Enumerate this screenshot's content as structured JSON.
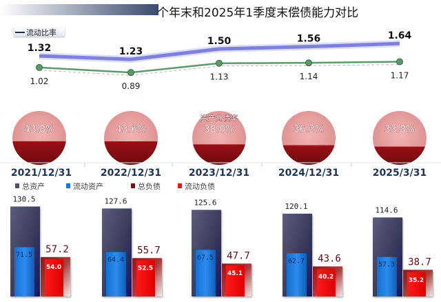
{
  "title": "个年末和2025年1季度末偿债能力对比",
  "colors": {
    "current_ratio_line": "#7f7fe0",
    "quick_ratio_line": "#5c9a6c",
    "debt_circle_light": "#e59b9b",
    "debt_circle_dark": "#8b0e12",
    "total_assets": "#4d4d6d",
    "current_assets": "#1478d8",
    "total_liabilities": "#7a1016",
    "current_liabilities": "#ff1010"
  },
  "chart_data": [
    {
      "type": "line",
      "categories": [
        "2021/12/31",
        "2022/12/31",
        "2023/12/31",
        "2024/12/31",
        "2025/3/31"
      ],
      "legend": "流动比率",
      "series": [
        {
          "name": "流动比率",
          "values": [
            1.32,
            1.23,
            1.5,
            1.56,
            1.64
          ]
        },
        {
          "values": [
            1.02,
            0.89,
            1.13,
            1.14,
            1.17
          ]
        }
      ]
    },
    {
      "type": "pie",
      "title": "资产负债率",
      "categories": [
        "2021/12/31",
        "2022/12/31",
        "2023/12/31",
        "2024/12/31",
        "2025/3/31"
      ],
      "values": [
        43.8,
        43.6,
        38.0,
        36.3,
        33.8
      ],
      "labels": [
        "43.8%",
        "43.6%",
        "38.0%",
        "36.3%",
        "33.8%"
      ]
    },
    {
      "type": "bar",
      "categories": [
        "2021/12/31",
        "2022/12/31",
        "2023/12/31",
        "2024/12/31",
        "2025/3/31"
      ],
      "series": [
        {
          "name": "总资产",
          "values": [
            130.5,
            127.6,
            125.6,
            120.1,
            114.6
          ]
        },
        {
          "name": "流动资产",
          "values": [
            71.5,
            64.4,
            67.5,
            62.7,
            57.3
          ]
        },
        {
          "name": "总负债",
          "values": [
            57.2,
            55.7,
            47.7,
            43.6,
            38.7
          ]
        },
        {
          "name": "流动负债",
          "values": [
            54.0,
            52.5,
            45.1,
            40.2,
            35.2
          ]
        }
      ]
    }
  ]
}
